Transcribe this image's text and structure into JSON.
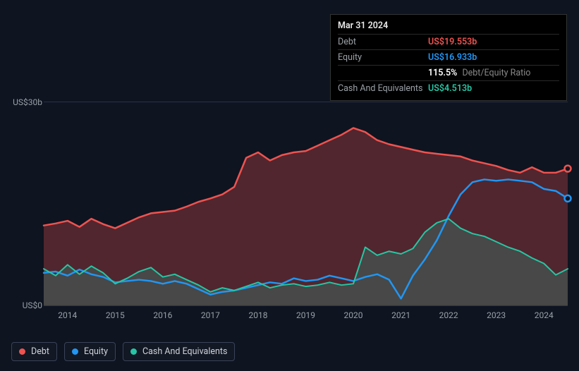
{
  "tooltip": {
    "date": "Mar 31 2024",
    "rows": [
      {
        "label": "Debt",
        "value": "US$19.553b",
        "cls": "debt"
      },
      {
        "label": "Equity",
        "value": "US$16.933b",
        "cls": "equity"
      },
      {
        "label": "",
        "ratio_value": "115.5%",
        "ratio_label": "Debt/Equity Ratio"
      },
      {
        "label": "Cash And Equivalents",
        "value": "US$4.513b",
        "cls": "cash"
      }
    ]
  },
  "chart": {
    "type": "area-line",
    "background_color": "#0e1420",
    "grid_color": "#2a3145",
    "y": {
      "min": 0,
      "max": 30,
      "ticks": [
        {
          "v": 30,
          "label": "US$30b"
        },
        {
          "v": 0,
          "label": "US$0"
        }
      ],
      "label_color": "#9aa0a6",
      "label_fontsize": 12
    },
    "x": {
      "min": 2013.5,
      "max": 2024.5,
      "ticks": [
        2014,
        2015,
        2016,
        2017,
        2018,
        2019,
        2020,
        2021,
        2022,
        2023,
        2024
      ],
      "label_color": "#9aa0a6",
      "label_fontsize": 12
    },
    "series": [
      {
        "name": "Debt",
        "color": "#ef5350",
        "fill_opacity": 0.3,
        "line_width": 2.5,
        "data": [
          [
            2013.5,
            11.8
          ],
          [
            2013.75,
            12.1
          ],
          [
            2014.0,
            12.5
          ],
          [
            2014.25,
            11.6
          ],
          [
            2014.5,
            12.8
          ],
          [
            2014.75,
            12.0
          ],
          [
            2015.0,
            11.4
          ],
          [
            2015.25,
            12.2
          ],
          [
            2015.5,
            13.0
          ],
          [
            2015.75,
            13.6
          ],
          [
            2016.0,
            13.8
          ],
          [
            2016.25,
            14.0
          ],
          [
            2016.5,
            14.6
          ],
          [
            2016.75,
            15.3
          ],
          [
            2017.0,
            15.8
          ],
          [
            2017.25,
            16.4
          ],
          [
            2017.5,
            17.5
          ],
          [
            2017.75,
            21.8
          ],
          [
            2018.0,
            22.6
          ],
          [
            2018.25,
            21.4
          ],
          [
            2018.5,
            22.2
          ],
          [
            2018.75,
            22.6
          ],
          [
            2019.0,
            22.8
          ],
          [
            2019.25,
            23.6
          ],
          [
            2019.5,
            24.4
          ],
          [
            2019.75,
            25.2
          ],
          [
            2020.0,
            26.2
          ],
          [
            2020.25,
            25.6
          ],
          [
            2020.5,
            24.4
          ],
          [
            2020.75,
            23.8
          ],
          [
            2021.0,
            23.4
          ],
          [
            2021.25,
            23.0
          ],
          [
            2021.5,
            22.6
          ],
          [
            2021.75,
            22.4
          ],
          [
            2022.0,
            22.2
          ],
          [
            2022.25,
            22.0
          ],
          [
            2022.5,
            21.4
          ],
          [
            2022.75,
            21.0
          ],
          [
            2023.0,
            20.6
          ],
          [
            2023.25,
            20.0
          ],
          [
            2023.5,
            19.6
          ],
          [
            2023.75,
            20.4
          ],
          [
            2024.0,
            19.6
          ],
          [
            2024.25,
            19.6
          ],
          [
            2024.5,
            20.2
          ]
        ]
      },
      {
        "name": "Equity",
        "color": "#2196f3",
        "fill_opacity": 0.0,
        "line_width": 2.5,
        "data": [
          [
            2013.5,
            4.8
          ],
          [
            2013.75,
            5.0
          ],
          [
            2014.0,
            4.4
          ],
          [
            2014.25,
            5.3
          ],
          [
            2014.5,
            4.6
          ],
          [
            2014.75,
            4.2
          ],
          [
            2015.0,
            3.4
          ],
          [
            2015.25,
            3.6
          ],
          [
            2015.5,
            3.8
          ],
          [
            2015.75,
            3.6
          ],
          [
            2016.0,
            3.2
          ],
          [
            2016.25,
            3.6
          ],
          [
            2016.5,
            3.2
          ],
          [
            2016.75,
            2.4
          ],
          [
            2017.0,
            1.6
          ],
          [
            2017.25,
            2.0
          ],
          [
            2017.5,
            2.2
          ],
          [
            2017.75,
            2.6
          ],
          [
            2018.0,
            3.0
          ],
          [
            2018.25,
            3.4
          ],
          [
            2018.5,
            3.2
          ],
          [
            2018.75,
            4.0
          ],
          [
            2019.0,
            3.6
          ],
          [
            2019.25,
            3.8
          ],
          [
            2019.5,
            4.4
          ],
          [
            2019.75,
            4.0
          ],
          [
            2020.0,
            3.6
          ],
          [
            2020.25,
            4.2
          ],
          [
            2020.5,
            4.6
          ],
          [
            2020.75,
            3.8
          ],
          [
            2021.0,
            1.0
          ],
          [
            2021.25,
            4.4
          ],
          [
            2021.5,
            6.8
          ],
          [
            2021.75,
            9.6
          ],
          [
            2022.0,
            13.2
          ],
          [
            2022.25,
            16.4
          ],
          [
            2022.5,
            18.2
          ],
          [
            2022.75,
            18.6
          ],
          [
            2023.0,
            18.4
          ],
          [
            2023.25,
            18.6
          ],
          [
            2023.5,
            18.4
          ],
          [
            2023.75,
            18.2
          ],
          [
            2024.0,
            17.2
          ],
          [
            2024.25,
            16.9
          ],
          [
            2024.5,
            15.8
          ]
        ]
      },
      {
        "name": "Cash And Equivalents",
        "color": "#26c6a4",
        "fill_opacity": 0.22,
        "line_width": 2.0,
        "data": [
          [
            2013.5,
            5.4
          ],
          [
            2013.75,
            4.4
          ],
          [
            2014.0,
            6.0
          ],
          [
            2014.25,
            4.6
          ],
          [
            2014.5,
            5.8
          ],
          [
            2014.75,
            4.8
          ],
          [
            2015.0,
            3.2
          ],
          [
            2015.25,
            4.0
          ],
          [
            2015.5,
            5.0
          ],
          [
            2015.75,
            5.6
          ],
          [
            2016.0,
            4.2
          ],
          [
            2016.25,
            4.6
          ],
          [
            2016.5,
            3.8
          ],
          [
            2016.75,
            3.0
          ],
          [
            2017.0,
            2.0
          ],
          [
            2017.25,
            2.6
          ],
          [
            2017.5,
            2.2
          ],
          [
            2017.75,
            2.8
          ],
          [
            2018.0,
            3.4
          ],
          [
            2018.25,
            2.6
          ],
          [
            2018.5,
            3.0
          ],
          [
            2018.75,
            3.2
          ],
          [
            2019.0,
            2.8
          ],
          [
            2019.25,
            3.0
          ],
          [
            2019.5,
            3.4
          ],
          [
            2019.75,
            3.0
          ],
          [
            2020.0,
            3.2
          ],
          [
            2020.25,
            8.6
          ],
          [
            2020.5,
            7.4
          ],
          [
            2020.75,
            8.0
          ],
          [
            2021.0,
            7.6
          ],
          [
            2021.25,
            8.4
          ],
          [
            2021.5,
            10.8
          ],
          [
            2021.75,
            12.2
          ],
          [
            2022.0,
            12.8
          ],
          [
            2022.25,
            11.4
          ],
          [
            2022.5,
            10.6
          ],
          [
            2022.75,
            10.2
          ],
          [
            2023.0,
            9.4
          ],
          [
            2023.25,
            8.6
          ],
          [
            2023.5,
            8.0
          ],
          [
            2023.75,
            7.0
          ],
          [
            2024.0,
            6.2
          ],
          [
            2024.25,
            4.5
          ],
          [
            2024.5,
            5.4
          ]
        ]
      }
    ],
    "end_markers": true
  },
  "legend": {
    "items": [
      {
        "label": "Debt",
        "color": "#ef5350"
      },
      {
        "label": "Equity",
        "color": "#2196f3"
      },
      {
        "label": "Cash And Equivalents",
        "color": "#26c6a4"
      }
    ],
    "border_color": "#3a4258",
    "text_color": "#cfd2d8",
    "fontsize": 12.5
  }
}
